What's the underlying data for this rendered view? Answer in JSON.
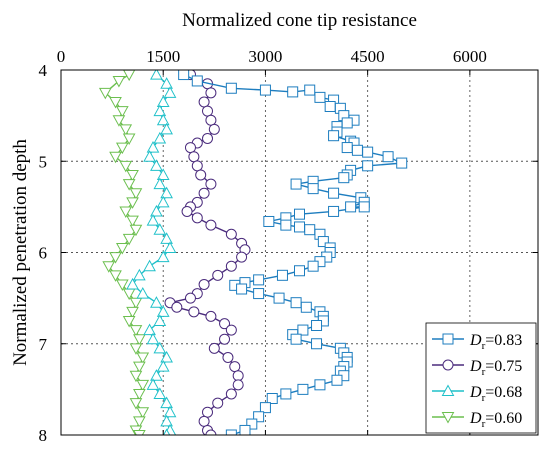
{
  "chart_data": {
    "type": "line",
    "xlabel": "Normalized cone tip resistance",
    "ylabel": "Normalized penetration depth",
    "x_axis_position": "top",
    "y_axis_inverted": true,
    "xlim": [
      0,
      7000
    ],
    "ylim": [
      4,
      8
    ],
    "xticks": [
      0,
      1500,
      3000,
      4500,
      6000
    ],
    "xtick_labels": [
      "0",
      "1500",
      "3000",
      "4500",
      "6000"
    ],
    "yticks": [
      4,
      5,
      6,
      7,
      8
    ],
    "ytick_labels": [
      "4",
      "5",
      "6",
      "7",
      "8"
    ],
    "grid": true,
    "legend_position": "bottom-right",
    "series": [
      {
        "name": "D_r=0.83",
        "legend_main": "D",
        "legend_sub": "r",
        "legend_value": "=0.83",
        "color": "#1d7dbf",
        "marker": "square",
        "points": [
          [
            1800,
            4.05
          ],
          [
            2000,
            4.12
          ],
          [
            2500,
            4.2
          ],
          [
            3000,
            4.22
          ],
          [
            3400,
            4.24
          ],
          [
            3650,
            4.22
          ],
          [
            3800,
            4.3
          ],
          [
            4000,
            4.33
          ],
          [
            3950,
            4.4
          ],
          [
            4100,
            4.42
          ],
          [
            4150,
            4.5
          ],
          [
            4300,
            4.55
          ],
          [
            4200,
            4.58
          ],
          [
            4050,
            4.62
          ],
          [
            4050,
            4.68
          ],
          [
            4000,
            4.72
          ],
          [
            4250,
            4.78
          ],
          [
            4300,
            4.8
          ],
          [
            4200,
            4.85
          ],
          [
            4350,
            4.88
          ],
          [
            4500,
            4.9
          ],
          [
            4800,
            4.95
          ],
          [
            5000,
            5.02
          ],
          [
            4500,
            5.05
          ],
          [
            4250,
            5.1
          ],
          [
            4200,
            5.15
          ],
          [
            4150,
            5.18
          ],
          [
            3700,
            5.22
          ],
          [
            3450,
            5.25
          ],
          [
            3700,
            5.3
          ],
          [
            4000,
            5.35
          ],
          [
            4400,
            5.4
          ],
          [
            4450,
            5.45
          ],
          [
            4250,
            5.5
          ],
          [
            4450,
            5.5
          ],
          [
            4000,
            5.55
          ],
          [
            3500,
            5.58
          ],
          [
            3300,
            5.62
          ],
          [
            3050,
            5.66
          ],
          [
            3300,
            5.7
          ],
          [
            3500,
            5.72
          ],
          [
            3650,
            5.75
          ],
          [
            3800,
            5.8
          ],
          [
            3850,
            5.88
          ],
          [
            3950,
            5.95
          ],
          [
            3950,
            6.0
          ],
          [
            3900,
            6.05
          ],
          [
            3800,
            6.1
          ],
          [
            3700,
            6.15
          ],
          [
            3500,
            6.2
          ],
          [
            3250,
            6.25
          ],
          [
            2900,
            6.3
          ],
          [
            2700,
            6.33
          ],
          [
            2550,
            6.36
          ],
          [
            2650,
            6.4
          ],
          [
            2900,
            6.45
          ],
          [
            3200,
            6.5
          ],
          [
            3450,
            6.55
          ],
          [
            3600,
            6.6
          ],
          [
            3800,
            6.65
          ],
          [
            3850,
            6.7
          ],
          [
            3850,
            6.75
          ],
          [
            3750,
            6.8
          ],
          [
            3550,
            6.85
          ],
          [
            3400,
            6.9
          ],
          [
            3450,
            6.95
          ],
          [
            3750,
            7.0
          ],
          [
            4100,
            7.05
          ],
          [
            4150,
            7.1
          ],
          [
            4200,
            7.15
          ],
          [
            4200,
            7.2
          ],
          [
            4150,
            7.25
          ],
          [
            4100,
            7.3
          ],
          [
            4150,
            7.35
          ],
          [
            4050,
            7.4
          ],
          [
            3800,
            7.45
          ],
          [
            3550,
            7.5
          ],
          [
            3300,
            7.55
          ],
          [
            3100,
            7.6
          ],
          [
            3000,
            7.7
          ],
          [
            2900,
            7.8
          ],
          [
            2800,
            7.88
          ],
          [
            2700,
            7.95
          ],
          [
            2500,
            8.0
          ]
        ]
      },
      {
        "name": "D_r=0.75",
        "legend_main": "D",
        "legend_sub": "r",
        "legend_value": "=0.75",
        "color": "#4b2c7d",
        "marker": "circle",
        "points": [
          [
            1900,
            4.05
          ],
          [
            2150,
            4.15
          ],
          [
            2200,
            4.25
          ],
          [
            2100,
            4.35
          ],
          [
            2150,
            4.45
          ],
          [
            2200,
            4.55
          ],
          [
            2250,
            4.65
          ],
          [
            2150,
            4.75
          ],
          [
            2000,
            4.8
          ],
          [
            1900,
            4.85
          ],
          [
            1950,
            4.95
          ],
          [
            2000,
            5.05
          ],
          [
            2050,
            5.15
          ],
          [
            2200,
            5.25
          ],
          [
            2100,
            5.35
          ],
          [
            2000,
            5.45
          ],
          [
            1900,
            5.5
          ],
          [
            1850,
            5.55
          ],
          [
            2000,
            5.62
          ],
          [
            2200,
            5.7
          ],
          [
            2500,
            5.8
          ],
          [
            2650,
            5.9
          ],
          [
            2700,
            5.97
          ],
          [
            2650,
            6.05
          ],
          [
            2500,
            6.15
          ],
          [
            2300,
            6.25
          ],
          [
            2100,
            6.35
          ],
          [
            2000,
            6.45
          ],
          [
            1900,
            6.5
          ],
          [
            1600,
            6.55
          ],
          [
            1700,
            6.6
          ],
          [
            1950,
            6.65
          ],
          [
            2200,
            6.7
          ],
          [
            2400,
            6.78
          ],
          [
            2500,
            6.85
          ],
          [
            2400,
            6.95
          ],
          [
            2250,
            7.05
          ],
          [
            2450,
            7.15
          ],
          [
            2550,
            7.25
          ],
          [
            2600,
            7.35
          ],
          [
            2600,
            7.45
          ],
          [
            2500,
            7.55
          ],
          [
            2300,
            7.65
          ],
          [
            2150,
            7.75
          ],
          [
            2100,
            7.85
          ],
          [
            2150,
            7.95
          ],
          [
            2200,
            8.0
          ]
        ]
      },
      {
        "name": "D_r=0.68",
        "legend_main": "D",
        "legend_sub": "r",
        "legend_value": "=0.68",
        "color": "#1fc0c9",
        "marker": "triangle-up",
        "points": [
          [
            1400,
            4.05
          ],
          [
            1550,
            4.15
          ],
          [
            1600,
            4.25
          ],
          [
            1500,
            4.35
          ],
          [
            1450,
            4.45
          ],
          [
            1500,
            4.55
          ],
          [
            1550,
            4.65
          ],
          [
            1450,
            4.75
          ],
          [
            1350,
            4.85
          ],
          [
            1300,
            4.95
          ],
          [
            1400,
            5.05
          ],
          [
            1500,
            5.15
          ],
          [
            1450,
            5.25
          ],
          [
            1550,
            5.35
          ],
          [
            1500,
            5.45
          ],
          [
            1400,
            5.55
          ],
          [
            1350,
            5.65
          ],
          [
            1450,
            5.75
          ],
          [
            1550,
            5.85
          ],
          [
            1600,
            5.95
          ],
          [
            1500,
            6.05
          ],
          [
            1300,
            6.15
          ],
          [
            1150,
            6.25
          ],
          [
            1050,
            6.35
          ],
          [
            1200,
            6.45
          ],
          [
            1400,
            6.55
          ],
          [
            1500,
            6.65
          ],
          [
            1450,
            6.75
          ],
          [
            1300,
            6.85
          ],
          [
            1350,
            6.95
          ],
          [
            1450,
            7.05
          ],
          [
            1550,
            7.15
          ],
          [
            1500,
            7.25
          ],
          [
            1400,
            7.35
          ],
          [
            1350,
            7.45
          ],
          [
            1450,
            7.55
          ],
          [
            1550,
            7.65
          ],
          [
            1600,
            7.75
          ],
          [
            1550,
            7.85
          ],
          [
            1600,
            7.95
          ],
          [
            1550,
            8.0
          ]
        ]
      },
      {
        "name": "D_r=0.60",
        "legend_main": "D",
        "legend_sub": "r",
        "legend_value": "=0.60",
        "color": "#6cbf4f",
        "marker": "triangle-down",
        "points": [
          [
            1000,
            4.05
          ],
          [
            850,
            4.12
          ],
          [
            650,
            4.25
          ],
          [
            800,
            4.35
          ],
          [
            900,
            4.45
          ],
          [
            850,
            4.55
          ],
          [
            950,
            4.65
          ],
          [
            1000,
            4.75
          ],
          [
            900,
            4.85
          ],
          [
            800,
            4.95
          ],
          [
            950,
            5.05
          ],
          [
            1050,
            5.15
          ],
          [
            1000,
            5.25
          ],
          [
            1100,
            5.35
          ],
          [
            1050,
            5.45
          ],
          [
            950,
            5.55
          ],
          [
            1050,
            5.65
          ],
          [
            1100,
            5.75
          ],
          [
            1000,
            5.85
          ],
          [
            900,
            5.95
          ],
          [
            800,
            6.05
          ],
          [
            700,
            6.15
          ],
          [
            800,
            6.25
          ],
          [
            900,
            6.35
          ],
          [
            1000,
            6.45
          ],
          [
            1100,
            6.55
          ],
          [
            1050,
            6.65
          ],
          [
            1000,
            6.75
          ],
          [
            1100,
            6.85
          ],
          [
            1150,
            6.95
          ],
          [
            1100,
            7.05
          ],
          [
            1200,
            7.15
          ],
          [
            1150,
            7.25
          ],
          [
            1100,
            7.35
          ],
          [
            1200,
            7.45
          ],
          [
            1150,
            7.55
          ],
          [
            1100,
            7.65
          ],
          [
            1200,
            7.75
          ],
          [
            1150,
            7.85
          ],
          [
            1100,
            7.95
          ],
          [
            1150,
            8.0
          ]
        ]
      }
    ]
  }
}
